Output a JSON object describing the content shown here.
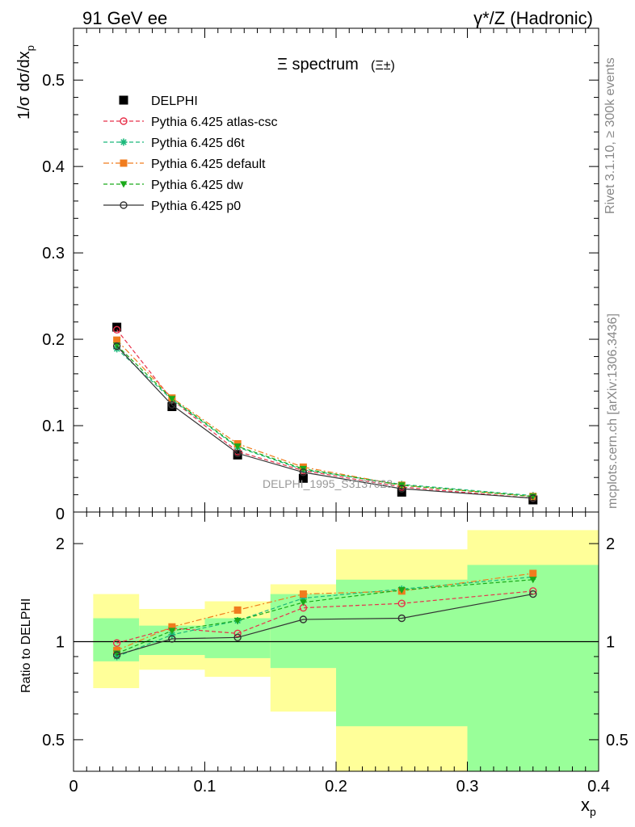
{
  "header": {
    "energy_label": "91 GeV ee",
    "process_label": "γ*/Z (Hadronic)"
  },
  "side_text": {
    "rivet": "Rivet 3.1.10, ≥ 300k events",
    "mcplots": "mcplots.cern.ch [arXiv:1306.3436]"
  },
  "chart_data": [
    {
      "type": "line",
      "panel": "main",
      "title": "Ξ spectrum",
      "title_suffix": "(Ξ±)",
      "ylabel": "1/σ dσ/dx",
      "ylabel_sub": "p",
      "ylim": [
        0,
        0.56
      ],
      "xlim": [
        0,
        0.4
      ],
      "yticks": [
        0.1,
        0.2,
        0.3,
        0.4,
        0.5
      ],
      "ytick_labels": [
        "0.1",
        "0.2",
        "0.3",
        "0.4",
        "0.5"
      ],
      "bottom_label": "0",
      "watermark": "DELPHI_1995_S3137023",
      "legend_position": "top-left",
      "x": [
        0.033,
        0.075,
        0.125,
        0.175,
        0.25,
        0.35
      ],
      "series": [
        {
          "name": "DELPHI",
          "color": "#000000",
          "marker": "filled-square",
          "line": "none",
          "values": [
            0.214,
            0.122,
            0.066,
            0.039,
            0.023,
            0.014
          ]
        },
        {
          "name": "Pythia 6.425 atlas-csc",
          "color": "#e8304a",
          "marker": "open-circle",
          "line": "dashed",
          "values": [
            0.211,
            0.13,
            0.07,
            0.048,
            0.029,
            0.016
          ]
        },
        {
          "name": "Pythia 6.425 d6t",
          "color": "#1ab87a",
          "marker": "star",
          "line": "dashed",
          "values": [
            0.189,
            0.13,
            0.075,
            0.049,
            0.032,
            0.019
          ]
        },
        {
          "name": "Pythia 6.425 default",
          "color": "#f07c1e",
          "marker": "filled-square",
          "line": "dashdot",
          "values": [
            0.199,
            0.132,
            0.079,
            0.052,
            0.031,
            0.018
          ]
        },
        {
          "name": "Pythia 6.425 dw",
          "color": "#1aaa1a",
          "marker": "filled-triangle-down",
          "line": "dashed",
          "values": [
            0.193,
            0.131,
            0.076,
            0.05,
            0.031,
            0.018
          ]
        },
        {
          "name": "Pythia 6.425 p0",
          "color": "#333333",
          "marker": "open-circle",
          "line": "solid",
          "values": [
            0.192,
            0.124,
            0.068,
            0.046,
            0.027,
            0.016
          ]
        }
      ]
    },
    {
      "type": "line",
      "panel": "ratio",
      "ylabel": "Ratio to DELPHI",
      "xlabel": "x",
      "xlabel_sub": "p",
      "scale": "log",
      "ylim": [
        0.4,
        2.5
      ],
      "xlim": [
        0,
        0.4
      ],
      "yticks": [
        0.5,
        1,
        2
      ],
      "ytick_labels": [
        "0.5",
        "1",
        "2"
      ],
      "xticks": [
        0,
        0.1,
        0.2,
        0.3,
        0.4
      ],
      "xtick_labels": [
        "0",
        "0.1",
        "0.2",
        "0.3",
        "0.4"
      ],
      "bands": [
        {
          "xmin": 0.015,
          "xmax": 0.05,
          "inner": [
            0.87,
            1.18
          ],
          "outer": [
            0.72,
            1.4
          ]
        },
        {
          "xmin": 0.05,
          "xmax": 0.1,
          "inner": [
            0.91,
            1.12
          ],
          "outer": [
            0.82,
            1.26
          ]
        },
        {
          "xmin": 0.1,
          "xmax": 0.15,
          "inner": [
            0.89,
            1.18
          ],
          "outer": [
            0.78,
            1.33
          ]
        },
        {
          "xmin": 0.15,
          "xmax": 0.2,
          "inner": [
            0.83,
            1.4
          ],
          "outer": [
            0.61,
            1.5
          ]
        },
        {
          "xmin": 0.2,
          "xmax": 0.3,
          "inner": [
            0.55,
            1.55
          ],
          "outer": [
            0.4,
            1.92
          ]
        },
        {
          "xmin": 0.3,
          "xmax": 0.4,
          "inner": [
            0.4,
            1.72
          ],
          "outer": [
            0.4,
            2.2
          ]
        }
      ],
      "x": [
        0.033,
        0.075,
        0.125,
        0.175,
        0.25,
        0.35
      ],
      "series": [
        {
          "name": "Pythia 6.425 atlas-csc",
          "color": "#e8304a",
          "marker": "open-circle",
          "line": "dashed",
          "values": [
            0.99,
            1.1,
            1.06,
            1.27,
            1.31,
            1.43
          ]
        },
        {
          "name": "Pythia 6.425 d6t",
          "color": "#1ab87a",
          "marker": "star",
          "line": "dashed",
          "values": [
            0.9,
            1.05,
            1.16,
            1.36,
            1.45,
            1.58
          ]
        },
        {
          "name": "Pythia 6.425 default",
          "color": "#f07c1e",
          "marker": "filled-square",
          "line": "dashdot",
          "values": [
            0.94,
            1.11,
            1.25,
            1.4,
            1.43,
            1.62
          ]
        },
        {
          "name": "Pythia 6.425 dw",
          "color": "#1aaa1a",
          "marker": "filled-triangle-down",
          "line": "dashed",
          "values": [
            0.92,
            1.08,
            1.16,
            1.32,
            1.44,
            1.55
          ]
        },
        {
          "name": "Pythia 6.425 p0",
          "color": "#333333",
          "marker": "open-circle",
          "line": "solid",
          "values": [
            0.91,
            1.02,
            1.03,
            1.17,
            1.18,
            1.4
          ]
        }
      ]
    }
  ]
}
